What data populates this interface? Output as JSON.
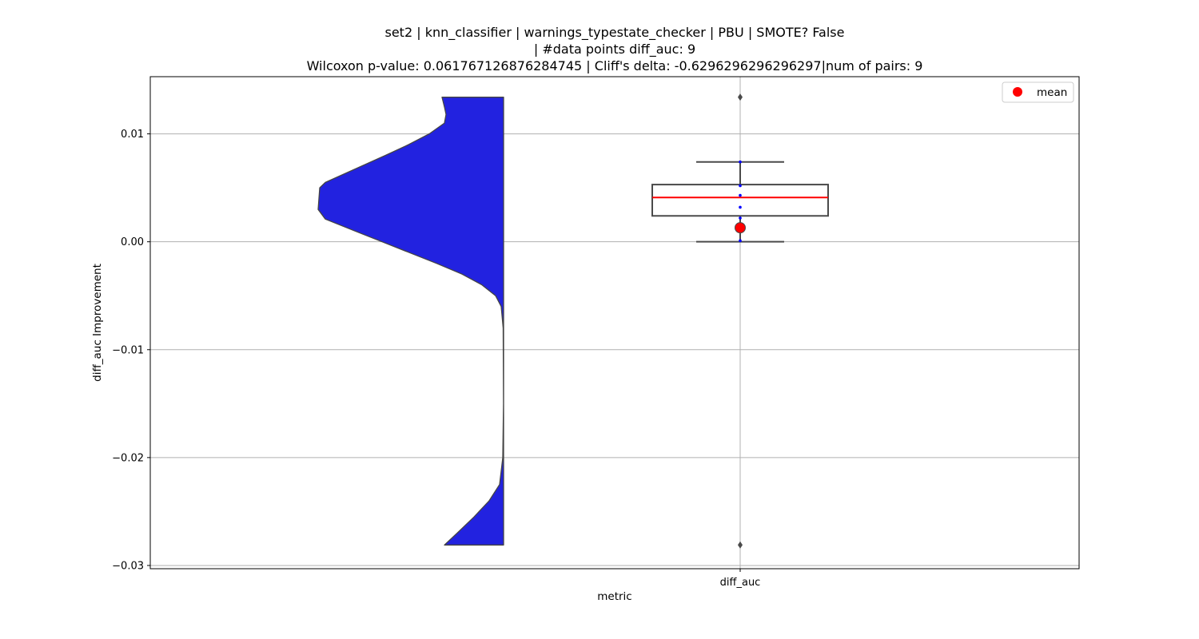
{
  "chart_data": {
    "type": "violin_box",
    "title_lines": [
      "set2 | knn_classifier | warnings_typestate_checker | PBU | SMOTE? False",
      "| #data points diff_auc: 9",
      "Wilcoxon p-value: 0.061767126876284745 | Cliff's delta: -0.6296296296296297|num of pairs: 9"
    ],
    "xlabel": "metric",
    "ylabel": "diff_auc Improvement",
    "categories": [
      "diff_auc"
    ],
    "ylim": [
      -0.0303,
      0.0153
    ],
    "yticks": [
      0.01,
      0.0,
      -0.01,
      -0.02,
      -0.03
    ],
    "ytick_labels": [
      "0.01",
      "0.00",
      "−0.01",
      "−0.02",
      "−0.03"
    ],
    "grid": true,
    "legend": {
      "position": "top-right",
      "entries": [
        {
          "label": "mean",
          "color": "#ff0000"
        }
      ]
    },
    "box": {
      "q1": 0.0024,
      "median": 0.0041,
      "q3": 0.0053,
      "whisker_low": 0.0,
      "whisker_high": 0.0074,
      "mean": 0.0013,
      "outliers": [
        0.0134,
        -0.0281
      ],
      "points": [
        0.0074,
        0.0052,
        0.0043,
        0.0032,
        0.0022,
        0.0001
      ],
      "median_color": "#ff0000",
      "point_color": "#0000ff"
    },
    "violin": {
      "fill_color": "#2222e0",
      "edge_color": "#444444",
      "y_top": 0.0134,
      "y_bottom": -0.0281,
      "profile": [
        [
          0.0134,
          0.77
        ],
        [
          0.0125,
          0.74
        ],
        [
          0.0118,
          0.72
        ],
        [
          0.011,
          0.74
        ],
        [
          0.01,
          0.93
        ],
        [
          0.009,
          1.19
        ],
        [
          0.008,
          1.48
        ],
        [
          0.007,
          1.78
        ],
        [
          0.006,
          2.08
        ],
        [
          0.0055,
          2.23
        ],
        [
          0.005,
          2.3
        ],
        [
          0.003,
          2.32
        ],
        [
          0.0021,
          2.23
        ],
        [
          0.001,
          1.86
        ],
        [
          0.0,
          1.52
        ],
        [
          -0.001,
          1.18
        ],
        [
          -0.002,
          0.84
        ],
        [
          -0.003,
          0.52
        ],
        [
          -0.004,
          0.27
        ],
        [
          -0.005,
          0.1
        ],
        [
          -0.006,
          0.03
        ],
        [
          -0.008,
          0.005
        ],
        [
          -0.015,
          0.001
        ],
        [
          -0.02,
          0.01
        ],
        [
          -0.0225,
          0.05
        ],
        [
          -0.024,
          0.18
        ],
        [
          -0.0255,
          0.37
        ],
        [
          -0.027,
          0.58
        ],
        [
          -0.0281,
          0.74
        ]
      ]
    }
  }
}
